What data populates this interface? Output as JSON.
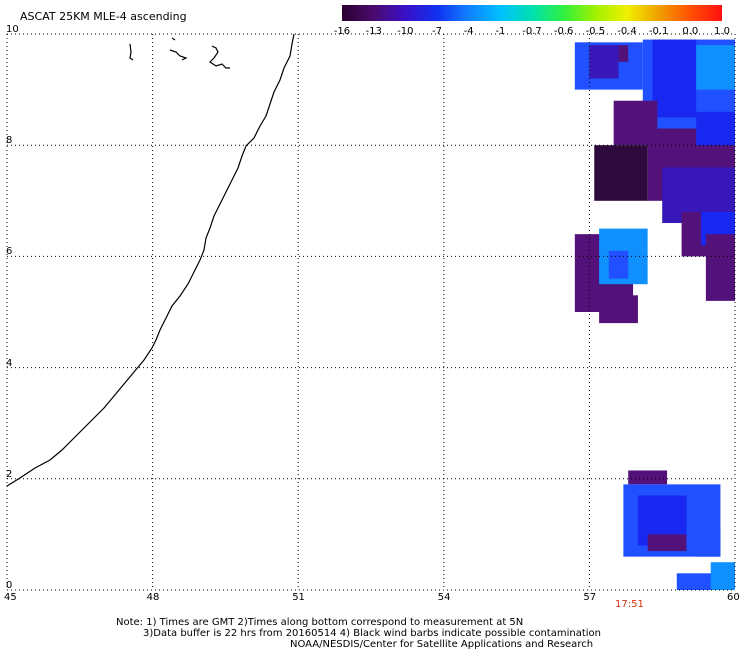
{
  "title": "ASCAT 25KM MLE-4 ascending",
  "colorbar": {
    "labels": [
      "-16",
      "-13",
      "-10",
      "-7",
      "-4",
      "-1",
      "-0.7",
      "-0.6",
      "-0.5",
      "-0.4",
      "-0.1",
      "0.0",
      "1.0"
    ],
    "colors": [
      "#2a0030",
      "#4b0a6e",
      "#3a10c8",
      "#1030f0",
      "#1080ff",
      "#00c0ff",
      "#00e0b0",
      "#30f040",
      "#a0f000",
      "#f0f000",
      "#f0a000",
      "#ff5000",
      "#ff1010"
    ]
  },
  "axes": {
    "x_ticks": [
      "45",
      "48",
      "51",
      "54",
      "57",
      "60"
    ],
    "y_ticks": [
      "0",
      "2",
      "4",
      "6",
      "8",
      "10"
    ],
    "xlim": [
      45,
      60
    ],
    "ylim": [
      0,
      10
    ],
    "grid": "dotted"
  },
  "time_label": "17:51",
  "notes": {
    "line1": "Note: 1) Times are GMT 2)Times along bottom correspond to measurement at 5N",
    "line2": "3)Data buffer is 22 hrs from 20160514 4) Black wind barbs indicate possible contamination",
    "line3": "NOAA/NESDIS/Center for Satellite Applications and Research"
  },
  "palette": {
    "dark_purple": "#2e0a3c",
    "purple": "#52127a",
    "indigo": "#3818b8",
    "blue": "#1828f0",
    "royal_blue": "#2050ff",
    "light_blue": "#1090ff",
    "coastline": "#000000"
  }
}
